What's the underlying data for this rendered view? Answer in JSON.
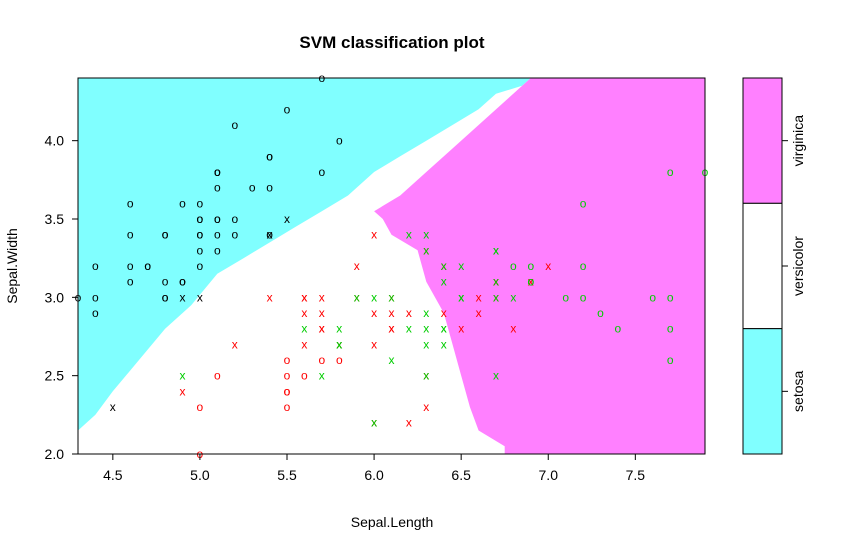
{
  "chart_data": {
    "type": "scatter",
    "title": "SVM classification plot",
    "xlabel": "Sepal.Length",
    "ylabel": "Sepal.Width",
    "xlim": [
      4.3,
      7.9
    ],
    "ylim": [
      2.0,
      4.4
    ],
    "xticks": [
      "4.5",
      "5.0",
      "5.5",
      "6.0",
      "6.5",
      "7.0",
      "7.5"
    ],
    "yticks": [
      "2.0",
      "2.5",
      "3.0",
      "3.5",
      "4.0"
    ],
    "grid": false,
    "legend": {
      "placement": "right",
      "classes": [
        {
          "name": "virginica",
          "color": "#FF80FF"
        },
        {
          "name": "versicolor",
          "color": "#FFFFFF"
        },
        {
          "name": "setosa",
          "color": "#80FFFF"
        }
      ]
    },
    "region_colors": {
      "setosa": "#80FFFF",
      "versicolor": "#FFFFFF",
      "virginica": "#FF80FF"
    },
    "point_colors": {
      "setosa": "#000000",
      "versicolor": "#FF0000",
      "virginica": "#00CD00"
    },
    "marker_legend": {
      "support_vector": "x",
      "other": "o"
    },
    "regions": {
      "setosa": [
        [
          4.3,
          2.15
        ],
        [
          4.3,
          4.4
        ],
        [
          6.9,
          4.4
        ],
        [
          6.85,
          4.35
        ],
        [
          6.7,
          4.3
        ],
        [
          6.6,
          4.2
        ],
        [
          6.45,
          4.1
        ],
        [
          6.3,
          4.0
        ],
        [
          6.15,
          3.9
        ],
        [
          6.0,
          3.8
        ],
        [
          5.85,
          3.65
        ],
        [
          5.7,
          3.55
        ],
        [
          5.55,
          3.45
        ],
        [
          5.4,
          3.35
        ],
        [
          5.25,
          3.25
        ],
        [
          5.1,
          3.15
        ],
        [
          4.95,
          2.95
        ],
        [
          4.8,
          2.8
        ],
        [
          4.65,
          2.6
        ],
        [
          4.5,
          2.4
        ],
        [
          4.4,
          2.25
        ]
      ],
      "virginica": [
        [
          6.9,
          4.4
        ],
        [
          7.9,
          4.4
        ],
        [
          7.9,
          2.0
        ],
        [
          6.75,
          2.0
        ],
        [
          6.75,
          2.05
        ],
        [
          6.6,
          2.15
        ],
        [
          6.55,
          2.3
        ],
        [
          6.5,
          2.5
        ],
        [
          6.45,
          2.7
        ],
        [
          6.4,
          2.9
        ],
        [
          6.3,
          3.1
        ],
        [
          6.25,
          3.3
        ],
        [
          6.1,
          3.4
        ],
        [
          6.05,
          3.5
        ],
        [
          6.0,
          3.55
        ],
        [
          6.15,
          3.65
        ],
        [
          6.3,
          3.8
        ],
        [
          6.45,
          3.95
        ],
        [
          6.6,
          4.1
        ],
        [
          6.75,
          4.25
        ]
      ]
    },
    "series": [
      {
        "name": "setosa",
        "color": "#000000",
        "points": [
          [
            5.1,
            3.5,
            "o"
          ],
          [
            4.9,
            3.0,
            "x"
          ],
          [
            4.7,
            3.2,
            "o"
          ],
          [
            4.6,
            3.1,
            "o"
          ],
          [
            5.0,
            3.6,
            "o"
          ],
          [
            5.4,
            3.9,
            "o"
          ],
          [
            4.6,
            3.4,
            "o"
          ],
          [
            5.0,
            3.4,
            "o"
          ],
          [
            4.4,
            2.9,
            "o"
          ],
          [
            4.9,
            3.1,
            "o"
          ],
          [
            5.4,
            3.7,
            "o"
          ],
          [
            4.8,
            3.4,
            "o"
          ],
          [
            4.8,
            3.0,
            "o"
          ],
          [
            4.3,
            3.0,
            "o"
          ],
          [
            5.8,
            4.0,
            "o"
          ],
          [
            5.7,
            4.4,
            "o"
          ],
          [
            5.4,
            3.9,
            "o"
          ],
          [
            5.1,
            3.5,
            "o"
          ],
          [
            5.7,
            3.8,
            "o"
          ],
          [
            5.1,
            3.8,
            "o"
          ],
          [
            5.4,
            3.4,
            "x"
          ],
          [
            5.1,
            3.7,
            "o"
          ],
          [
            4.6,
            3.6,
            "o"
          ],
          [
            5.1,
            3.3,
            "o"
          ],
          [
            4.8,
            3.4,
            "o"
          ],
          [
            5.0,
            3.0,
            "x"
          ],
          [
            5.0,
            3.4,
            "o"
          ],
          [
            5.2,
            3.5,
            "o"
          ],
          [
            5.2,
            3.4,
            "o"
          ],
          [
            4.7,
            3.2,
            "o"
          ],
          [
            4.8,
            3.1,
            "o"
          ],
          [
            5.4,
            3.4,
            "o"
          ],
          [
            5.2,
            4.1,
            "o"
          ],
          [
            5.5,
            4.2,
            "o"
          ],
          [
            4.9,
            3.1,
            "o"
          ],
          [
            5.0,
            3.2,
            "o"
          ],
          [
            5.5,
            3.5,
            "x"
          ],
          [
            4.9,
            3.6,
            "o"
          ],
          [
            4.4,
            3.0,
            "o"
          ],
          [
            5.1,
            3.4,
            "o"
          ],
          [
            5.0,
            3.5,
            "o"
          ],
          [
            4.5,
            2.3,
            "x"
          ],
          [
            4.4,
            3.2,
            "o"
          ],
          [
            5.0,
            3.5,
            "o"
          ],
          [
            5.1,
            3.8,
            "o"
          ],
          [
            4.8,
            3.0,
            "o"
          ],
          [
            5.1,
            3.8,
            "o"
          ],
          [
            4.6,
            3.2,
            "o"
          ],
          [
            5.3,
            3.7,
            "o"
          ],
          [
            5.0,
            3.3,
            "o"
          ]
        ]
      },
      {
        "name": "versicolor",
        "color": "#FF0000",
        "points": [
          [
            7.0,
            3.2,
            "x"
          ],
          [
            6.4,
            3.2,
            "x"
          ],
          [
            6.9,
            3.1,
            "x"
          ],
          [
            5.5,
            2.3,
            "o"
          ],
          [
            6.5,
            2.8,
            "x"
          ],
          [
            5.7,
            2.8,
            "x"
          ],
          [
            6.3,
            3.3,
            "x"
          ],
          [
            4.9,
            2.4,
            "x"
          ],
          [
            6.6,
            2.9,
            "x"
          ],
          [
            5.2,
            2.7,
            "x"
          ],
          [
            5.0,
            2.0,
            "o"
          ],
          [
            5.9,
            3.0,
            "x"
          ],
          [
            6.0,
            2.2,
            "x"
          ],
          [
            6.1,
            2.9,
            "x"
          ],
          [
            5.6,
            2.9,
            "x"
          ],
          [
            6.7,
            3.1,
            "x"
          ],
          [
            5.6,
            3.0,
            "x"
          ],
          [
            5.8,
            2.7,
            "x"
          ],
          [
            6.2,
            2.2,
            "x"
          ],
          [
            5.6,
            2.5,
            "o"
          ],
          [
            5.9,
            3.2,
            "x"
          ],
          [
            6.1,
            2.8,
            "x"
          ],
          [
            6.3,
            2.5,
            "x"
          ],
          [
            6.1,
            2.8,
            "x"
          ],
          [
            6.4,
            2.9,
            "x"
          ],
          [
            6.6,
            3.0,
            "x"
          ],
          [
            6.8,
            2.8,
            "x"
          ],
          [
            6.7,
            3.0,
            "x"
          ],
          [
            6.0,
            2.9,
            "x"
          ],
          [
            5.7,
            2.6,
            "o"
          ],
          [
            5.5,
            2.4,
            "o"
          ],
          [
            5.5,
            2.4,
            "o"
          ],
          [
            5.8,
            2.7,
            "x"
          ],
          [
            6.0,
            2.7,
            "x"
          ],
          [
            5.4,
            3.0,
            "x"
          ],
          [
            6.0,
            3.4,
            "x"
          ],
          [
            6.7,
            3.1,
            "x"
          ],
          [
            6.3,
            2.3,
            "x"
          ],
          [
            5.6,
            3.0,
            "x"
          ],
          [
            5.5,
            2.5,
            "o"
          ],
          [
            5.5,
            2.6,
            "o"
          ],
          [
            6.1,
            3.0,
            "x"
          ],
          [
            5.8,
            2.6,
            "o"
          ],
          [
            5.0,
            2.3,
            "o"
          ],
          [
            5.6,
            2.7,
            "x"
          ],
          [
            5.7,
            3.0,
            "x"
          ],
          [
            5.7,
            2.9,
            "x"
          ],
          [
            6.2,
            2.9,
            "x"
          ],
          [
            5.1,
            2.5,
            "o"
          ],
          [
            5.7,
            2.8,
            "x"
          ]
        ]
      },
      {
        "name": "virginica",
        "color": "#00CD00",
        "points": [
          [
            6.3,
            3.3,
            "x"
          ],
          [
            5.8,
            2.7,
            "x"
          ],
          [
            7.1,
            3.0,
            "o"
          ],
          [
            6.3,
            2.9,
            "x"
          ],
          [
            6.5,
            3.0,
            "x"
          ],
          [
            7.6,
            3.0,
            "o"
          ],
          [
            4.9,
            2.5,
            "x"
          ],
          [
            7.3,
            2.9,
            "o"
          ],
          [
            6.7,
            2.5,
            "x"
          ],
          [
            7.2,
            3.6,
            "o"
          ],
          [
            6.5,
            3.2,
            "x"
          ],
          [
            6.4,
            2.7,
            "x"
          ],
          [
            6.8,
            3.0,
            "x"
          ],
          [
            5.7,
            2.5,
            "x"
          ],
          [
            5.8,
            2.8,
            "x"
          ],
          [
            6.4,
            3.2,
            "x"
          ],
          [
            6.5,
            3.0,
            "x"
          ],
          [
            7.7,
            3.8,
            "o"
          ],
          [
            7.7,
            2.6,
            "o"
          ],
          [
            6.0,
            2.2,
            "x"
          ],
          [
            6.9,
            3.2,
            "o"
          ],
          [
            5.6,
            2.8,
            "x"
          ],
          [
            7.7,
            2.8,
            "o"
          ],
          [
            6.3,
            2.7,
            "x"
          ],
          [
            6.7,
            3.3,
            "x"
          ],
          [
            7.2,
            3.2,
            "o"
          ],
          [
            6.2,
            2.8,
            "x"
          ],
          [
            6.1,
            3.0,
            "x"
          ],
          [
            6.4,
            2.8,
            "x"
          ],
          [
            7.2,
            3.0,
            "o"
          ],
          [
            7.4,
            2.8,
            "o"
          ],
          [
            7.9,
            3.8,
            "o"
          ],
          [
            6.4,
            2.8,
            "x"
          ],
          [
            6.3,
            2.8,
            "x"
          ],
          [
            6.1,
            2.6,
            "x"
          ],
          [
            7.7,
            3.0,
            "o"
          ],
          [
            6.3,
            3.4,
            "x"
          ],
          [
            6.4,
            3.1,
            "x"
          ],
          [
            6.0,
            3.0,
            "x"
          ],
          [
            6.9,
            3.1,
            "o"
          ],
          [
            6.7,
            3.1,
            "x"
          ],
          [
            6.9,
            3.1,
            "o"
          ],
          [
            5.8,
            2.7,
            "x"
          ],
          [
            6.8,
            3.2,
            "o"
          ],
          [
            6.7,
            3.3,
            "x"
          ],
          [
            6.7,
            3.0,
            "x"
          ],
          [
            6.3,
            2.5,
            "x"
          ],
          [
            6.5,
            3.0,
            "x"
          ],
          [
            6.2,
            3.4,
            "x"
          ],
          [
            5.9,
            3.0,
            "x"
          ]
        ]
      }
    ]
  }
}
